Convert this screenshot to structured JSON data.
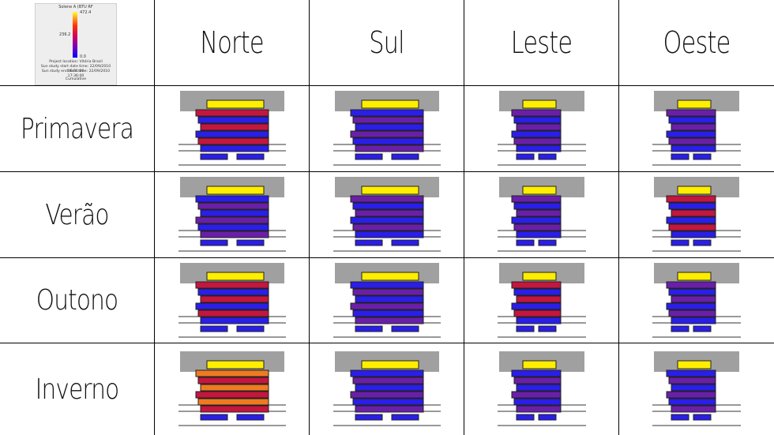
{
  "legend": {
    "title": "Solene A (BTU RF",
    "max_label": "472.4",
    "mid_label": "236.2",
    "min_label": "0.0",
    "location": "Project location: Vitória Brasil",
    "start": "Sun study start date time: 22/09/2010 06:31:00",
    "end": "Sun study end date time: 22/09/2010 17:36:00",
    "mode": "Cumulative"
  },
  "columns": [
    "Norte",
    "Sul",
    "Leste",
    "Oeste"
  ],
  "rows": [
    {
      "season": "Primavera",
      "tones": [
        "red",
        "blue",
        "purple",
        "purple"
      ]
    },
    {
      "season": "Verão",
      "tones": [
        "blue",
        "purple",
        "purple",
        "red"
      ]
    },
    {
      "season": "Outono",
      "tones": [
        "red",
        "blue",
        "red",
        "purple"
      ]
    },
    {
      "season": "Inverno",
      "tones": [
        "orange",
        "blue",
        "blue",
        "blue"
      ]
    }
  ],
  "colors": {
    "yellow": "#ffee00",
    "blue": "#2a1ee8",
    "purple": "#6a1fa8",
    "red": "#c4163e",
    "orange": "#f07a20",
    "gray": "#a0a0a0"
  }
}
